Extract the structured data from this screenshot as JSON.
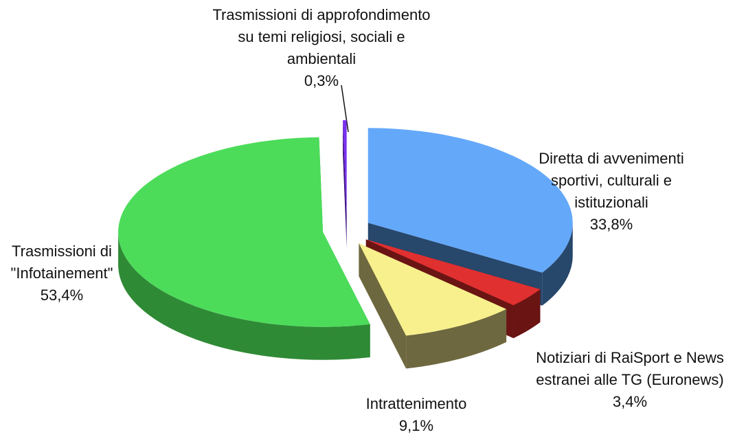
{
  "chart_data": {
    "type": "pie3d",
    "categories": [
      "Diretta di avvenimenti sportivi, culturali e istituzionali",
      "Notiziari di RaiSport e News estranei alle TG (Euronews)",
      "Intrattenimento",
      "Trasmissioni di \"Infotainement\"",
      "Trasmissioni di approfondimento su temi religiosi, sociali e ambientali"
    ],
    "values": [
      33.8,
      3.4,
      9.1,
      53.4,
      0.3
    ],
    "value_labels": [
      "33,8%",
      "3,4%",
      "9,1%",
      "53,4%",
      "0,3%"
    ],
    "colors": [
      "#64a8fa",
      "#e03030",
      "#f8f08c",
      "#4cdc5a",
      "#7a30f0"
    ],
    "side_colors": [
      "#27476b",
      "#6b1414",
      "#6e6840",
      "#2f8a36",
      "#3a1080"
    ]
  }
}
